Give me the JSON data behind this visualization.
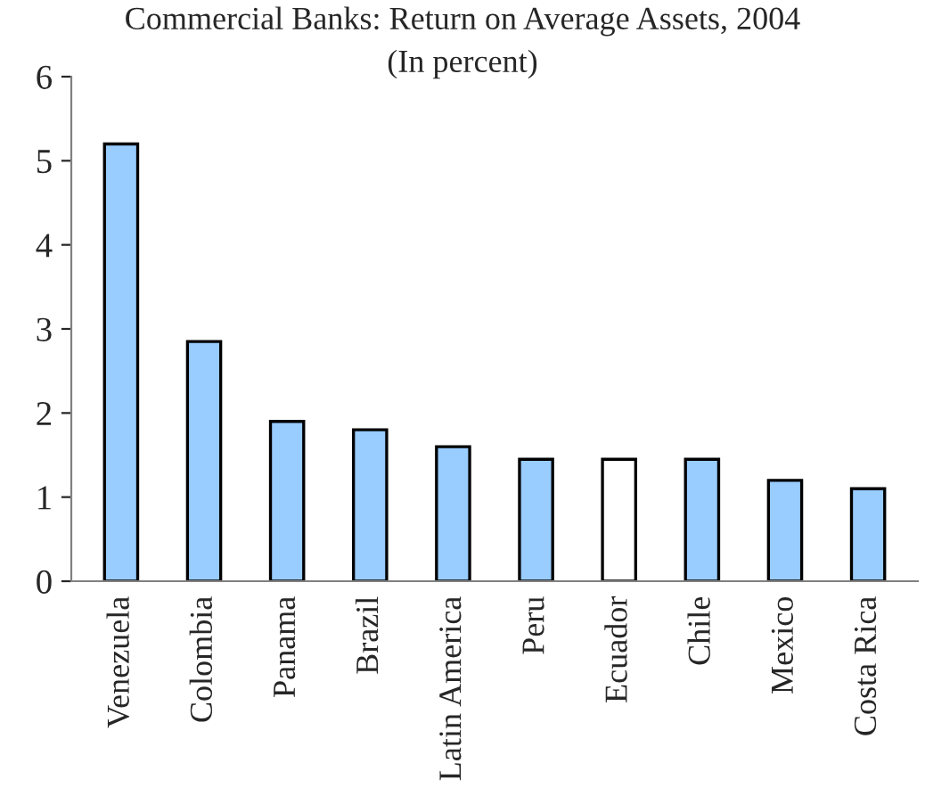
{
  "chart_data": {
    "type": "bar",
    "title": "Commercial Banks: Return on Average Assets, 2004",
    "subtitle": "(In percent)",
    "categories": [
      "Venezuela",
      "Colombia",
      "Panama",
      "Brazil",
      "Latin America",
      "Peru",
      "Ecuador",
      "Chile",
      "Mexico",
      "Costa Rica"
    ],
    "values": [
      5.2,
      2.85,
      1.9,
      1.8,
      1.6,
      1.45,
      1.45,
      1.45,
      1.2,
      1.1
    ],
    "colors": [
      "#99ccff",
      "#99ccff",
      "#99ccff",
      "#99ccff",
      "#99ccff",
      "#99ccff",
      "#ffffff",
      "#99ccff",
      "#99ccff",
      "#99ccff"
    ],
    "ylim": [
      0,
      6
    ],
    "yticks": [
      0,
      1,
      2,
      3,
      4,
      5,
      6
    ],
    "grid": false,
    "legend": false
  }
}
